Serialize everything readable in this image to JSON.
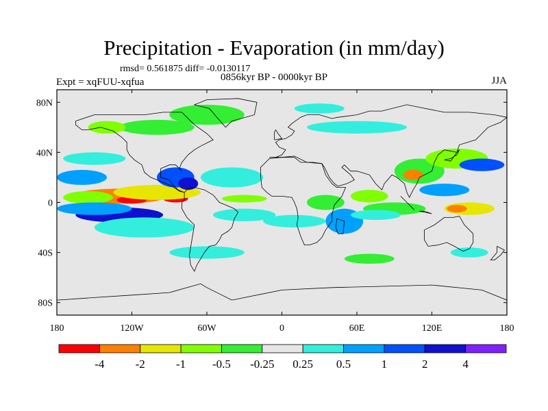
{
  "chart_data": {
    "type": "heatmap",
    "title": "Precipitation - Evaporation (in mm/day)",
    "stats_line": "rmsd= 0.561875 diff= -0.0130117",
    "period_line": "0856kyr BP - 0000kyr BP",
    "experiment": "Expt = xqFUU-xqfua",
    "season": "JJA",
    "x_ticks": [
      {
        "lon": -180,
        "label": "180"
      },
      {
        "lon": -120,
        "label": "120W"
      },
      {
        "lon": -60,
        "label": "60W"
      },
      {
        "lon": 0,
        "label": "0"
      },
      {
        "lon": 60,
        "label": "60E"
      },
      {
        "lon": 120,
        "label": "120E"
      },
      {
        "lon": 180,
        "label": "180"
      }
    ],
    "y_ticks": [
      {
        "lat": 80,
        "label": "80N"
      },
      {
        "lat": 40,
        "label": "40N"
      },
      {
        "lat": 0,
        "label": "0"
      },
      {
        "lat": -40,
        "label": "40S"
      },
      {
        "lat": -80,
        "label": "80S"
      }
    ],
    "lon_range": [
      -180,
      180
    ],
    "lat_range": [
      -90,
      90
    ],
    "colorbar": {
      "colors": [
        "#ff0000",
        "#ff8000",
        "#e6e600",
        "#80ff00",
        "#33ee33",
        "#e6e6e6",
        "#33eedd",
        "#00a0ff",
        "#0050ff",
        "#1010d0",
        "#8020ff"
      ],
      "labels": [
        "-4",
        "-2",
        "-1",
        "-0.5",
        "-0.25",
        "0.25",
        "0.5",
        "1",
        "2",
        "4"
      ]
    },
    "anomalies": [
      {
        "lon": -130,
        "lat": 5,
        "rx": 38,
        "ry": 6,
        "level": 1
      },
      {
        "lon": -120,
        "lat": 2,
        "rx": 12,
        "ry": 3,
        "level": 0
      },
      {
        "lon": -85,
        "lat": 3,
        "rx": 10,
        "ry": 3,
        "level": 0
      },
      {
        "lon": -155,
        "lat": 4,
        "rx": 20,
        "ry": 5,
        "level": 3
      },
      {
        "lon": -100,
        "lat": 8,
        "rx": 35,
        "ry": 6,
        "level": 2
      },
      {
        "lon": -30,
        "lat": 3,
        "rx": 18,
        "ry": 3,
        "level": 3
      },
      {
        "lon": -130,
        "lat": -10,
        "rx": 35,
        "ry": 6,
        "level": 9
      },
      {
        "lon": -110,
        "lat": -20,
        "rx": 40,
        "ry": 8,
        "level": 6
      },
      {
        "lon": -150,
        "lat": -5,
        "rx": 30,
        "ry": 5,
        "level": 7
      },
      {
        "lon": -160,
        "lat": 20,
        "rx": 20,
        "ry": 6,
        "level": 7
      },
      {
        "lon": -85,
        "lat": 20,
        "rx": 15,
        "ry": 8,
        "level": 8
      },
      {
        "lon": -75,
        "lat": 15,
        "rx": 8,
        "ry": 5,
        "level": 9
      },
      {
        "lon": -40,
        "lat": 20,
        "rx": 25,
        "ry": 8,
        "level": 6
      },
      {
        "lon": -30,
        "lat": -10,
        "rx": 25,
        "ry": 5,
        "level": 6
      },
      {
        "lon": 10,
        "lat": -15,
        "rx": 25,
        "ry": 5,
        "level": 6
      },
      {
        "lon": 50,
        "lat": -15,
        "rx": 15,
        "ry": 10,
        "level": 7
      },
      {
        "lon": 35,
        "lat": 0,
        "rx": 15,
        "ry": 6,
        "level": 4
      },
      {
        "lon": 70,
        "lat": 5,
        "rx": 15,
        "ry": 5,
        "level": 3
      },
      {
        "lon": 90,
        "lat": -5,
        "rx": 25,
        "ry": 5,
        "level": 4
      },
      {
        "lon": 75,
        "lat": -10,
        "rx": 20,
        "ry": 4,
        "level": 6
      },
      {
        "lon": 150,
        "lat": -5,
        "rx": 20,
        "ry": 5,
        "level": 2
      },
      {
        "lon": 140,
        "lat": -5,
        "rx": 8,
        "ry": 3,
        "level": 1
      },
      {
        "lon": 110,
        "lat": 25,
        "rx": 20,
        "ry": 10,
        "level": 4
      },
      {
        "lon": 105,
        "lat": 22,
        "rx": 8,
        "ry": 4,
        "level": 1
      },
      {
        "lon": 140,
        "lat": 35,
        "rx": 25,
        "ry": 8,
        "level": 3
      },
      {
        "lon": 160,
        "lat": 30,
        "rx": 18,
        "ry": 5,
        "level": 8
      },
      {
        "lon": 130,
        "lat": 10,
        "rx": 20,
        "ry": 5,
        "level": 7
      },
      {
        "lon": -150,
        "lat": 35,
        "rx": 25,
        "ry": 5,
        "level": 6
      },
      {
        "lon": -60,
        "lat": 70,
        "rx": 30,
        "ry": 8,
        "level": 4
      },
      {
        "lon": -100,
        "lat": 60,
        "rx": 30,
        "ry": 6,
        "level": 4
      },
      {
        "lon": 60,
        "lat": 60,
        "rx": 40,
        "ry": 5,
        "level": 6
      },
      {
        "lon": 30,
        "lat": 75,
        "rx": 20,
        "ry": 4,
        "level": 6
      },
      {
        "lon": -140,
        "lat": 60,
        "rx": 15,
        "ry": 5,
        "level": 3
      },
      {
        "lon": -60,
        "lat": -40,
        "rx": 30,
        "ry": 5,
        "level": 6
      },
      {
        "lon": 70,
        "lat": -45,
        "rx": 20,
        "ry": 4,
        "level": 4
      },
      {
        "lon": 150,
        "lat": -40,
        "rx": 15,
        "ry": 4,
        "level": 6
      }
    ],
    "coastlines": [
      [
        [
          -165,
          65
        ],
        [
          -150,
          70
        ],
        [
          -130,
          70
        ],
        [
          -110,
          70
        ],
        [
          -95,
          72
        ],
        [
          -80,
          72
        ],
        [
          -70,
          62
        ],
        [
          -60,
          55
        ],
        [
          -55,
          50
        ],
        [
          -65,
          45
        ],
        [
          -70,
          42
        ],
        [
          -75,
          38
        ],
        [
          -80,
          32
        ],
        [
          -82,
          27
        ],
        [
          -80,
          25
        ],
        [
          -85,
          30
        ],
        [
          -90,
          30
        ],
        [
          -97,
          27
        ],
        [
          -97,
          20
        ],
        [
          -90,
          18
        ],
        [
          -88,
          15
        ],
        [
          -83,
          10
        ],
        [
          -78,
          8
        ],
        [
          -82,
          9
        ],
        [
          -88,
          13
        ],
        [
          -95,
          16
        ],
        [
          -105,
          20
        ],
        [
          -110,
          24
        ],
        [
          -112,
          30
        ],
        [
          -118,
          34
        ],
        [
          -122,
          38
        ],
        [
          -124,
          42
        ],
        [
          -124,
          48
        ],
        [
          -128,
          52
        ],
        [
          -135,
          57
        ],
        [
          -145,
          60
        ],
        [
          -155,
          58
        ],
        [
          -160,
          58
        ],
        [
          -165,
          62
        ],
        [
          -165,
          65
        ]
      ],
      [
        [
          -78,
          8
        ],
        [
          -75,
          11
        ],
        [
          -70,
          12
        ],
        [
          -62,
          10
        ],
        [
          -55,
          6
        ],
        [
          -50,
          0
        ],
        [
          -45,
          -2
        ],
        [
          -38,
          -5
        ],
        [
          -35,
          -8
        ],
        [
          -38,
          -13
        ],
        [
          -40,
          -20
        ],
        [
          -43,
          -23
        ],
        [
          -48,
          -26
        ],
        [
          -50,
          -30
        ],
        [
          -53,
          -34
        ],
        [
          -58,
          -35
        ],
        [
          -62,
          -40
        ],
        [
          -65,
          -45
        ],
        [
          -68,
          -50
        ],
        [
          -70,
          -55
        ],
        [
          -73,
          -50
        ],
        [
          -74,
          -42
        ],
        [
          -72,
          -30
        ],
        [
          -70,
          -18
        ],
        [
          -76,
          -12
        ],
        [
          -80,
          -5
        ],
        [
          -80,
          0
        ],
        [
          -78,
          2
        ],
        [
          -78,
          8
        ]
      ],
      [
        [
          -10,
          36
        ],
        [
          -5,
          36
        ],
        [
          0,
          38
        ],
        [
          3,
          42
        ],
        [
          -2,
          44
        ],
        [
          -5,
          48
        ],
        [
          -2,
          50
        ],
        [
          3,
          51
        ],
        [
          8,
          54
        ],
        [
          10,
          57
        ],
        [
          5,
          60
        ],
        [
          8,
          63
        ],
        [
          15,
          68
        ],
        [
          20,
          70
        ],
        [
          30,
          70
        ],
        [
          40,
          67
        ],
        [
          45,
          68
        ],
        [
          60,
          70
        ],
        [
          70,
          73
        ],
        [
          80,
          73
        ],
        [
          100,
          78
        ],
        [
          110,
          76
        ],
        [
          130,
          72
        ],
        [
          150,
          72
        ],
        [
          170,
          70
        ],
        [
          180,
          68
        ],
        [
          175,
          64
        ],
        [
          165,
          60
        ],
        [
          160,
          55
        ],
        [
          155,
          50
        ],
        [
          142,
          46
        ],
        [
          140,
          40
        ],
        [
          130,
          42
        ],
        [
          125,
          38
        ],
        [
          122,
          32
        ],
        [
          120,
          25
        ],
        [
          110,
          20
        ],
        [
          108,
          15
        ],
        [
          105,
          10
        ],
        [
          102,
          4
        ],
        [
          100,
          8
        ],
        [
          98,
          15
        ],
        [
          92,
          20
        ],
        [
          88,
          22
        ],
        [
          82,
          15
        ],
        [
          80,
          10
        ],
        [
          75,
          15
        ],
        [
          70,
          22
        ],
        [
          60,
          25
        ],
        [
          55,
          25
        ],
        [
          50,
          30
        ],
        [
          48,
          28
        ],
        [
          55,
          22
        ],
        [
          58,
          18
        ],
        [
          52,
          15
        ],
        [
          45,
          13
        ],
        [
          42,
          15
        ],
        [
          38,
          20
        ],
        [
          34,
          28
        ],
        [
          32,
          31
        ],
        [
          25,
          32
        ],
        [
          15,
          32
        ],
        [
          10,
          36
        ],
        [
          0,
          36
        ],
        [
          -10,
          36
        ]
      ],
      [
        [
          -17,
          21
        ],
        [
          -16,
          12
        ],
        [
          -12,
          8
        ],
        [
          -8,
          5
        ],
        [
          0,
          5
        ],
        [
          8,
          4
        ],
        [
          10,
          0
        ],
        [
          12,
          -5
        ],
        [
          13,
          -12
        ],
        [
          12,
          -18
        ],
        [
          15,
          -27
        ],
        [
          18,
          -34
        ],
        [
          22,
          -34
        ],
        [
          28,
          -32
        ],
        [
          32,
          -28
        ],
        [
          35,
          -22
        ],
        [
          40,
          -15
        ],
        [
          40,
          -10
        ],
        [
          42,
          -2
        ],
        [
          48,
          5
        ],
        [
          51,
          12
        ],
        [
          44,
          12
        ],
        [
          40,
          15
        ],
        [
          35,
          22
        ],
        [
          32,
          31
        ],
        [
          20,
          32
        ],
        [
          10,
          37
        ],
        [
          0,
          36
        ],
        [
          -10,
          35
        ],
        [
          -17,
          28
        ],
        [
          -17,
          21
        ]
      ],
      [
        [
          44,
          -13
        ],
        [
          50,
          -15
        ],
        [
          49,
          -25
        ],
        [
          45,
          -25
        ],
        [
          43,
          -20
        ],
        [
          44,
          -13
        ]
      ],
      [
        [
          114,
          -22
        ],
        [
          122,
          -18
        ],
        [
          130,
          -12
        ],
        [
          137,
          -12
        ],
        [
          142,
          -11
        ],
        [
          146,
          -18
        ],
        [
          153,
          -25
        ],
        [
          153,
          -32
        ],
        [
          150,
          -37
        ],
        [
          145,
          -39
        ],
        [
          138,
          -35
        ],
        [
          132,
          -32
        ],
        [
          125,
          -34
        ],
        [
          117,
          -35
        ],
        [
          114,
          -30
        ],
        [
          114,
          -22
        ]
      ],
      [
        [
          -45,
          60
        ],
        [
          -40,
          65
        ],
        [
          -22,
          70
        ],
        [
          -20,
          80
        ],
        [
          -35,
          83
        ],
        [
          -60,
          82
        ],
        [
          -70,
          78
        ],
        [
          -58,
          75
        ],
        [
          -52,
          68
        ],
        [
          -45,
          60
        ]
      ],
      [
        [
          -180,
          -78
        ],
        [
          -150,
          -76
        ],
        [
          -120,
          -74
        ],
        [
          -90,
          -72
        ],
        [
          -65,
          -65
        ],
        [
          -60,
          -68
        ],
        [
          -40,
          -78
        ],
        [
          0,
          -70
        ],
        [
          40,
          -68
        ],
        [
          80,
          -67
        ],
        [
          120,
          -66
        ],
        [
          160,
          -70
        ],
        [
          180,
          -78
        ]
      ],
      [
        [
          172,
          -35
        ],
        [
          178,
          -38
        ],
        [
          175,
          -42
        ],
        [
          170,
          -46
        ],
        [
          167,
          -46
        ],
        [
          172,
          -40
        ],
        [
          172,
          -35
        ]
      ],
      [
        [
          95,
          5
        ],
        [
          105,
          -5
        ],
        [
          106,
          -6
        ],
        [
          100,
          0
        ],
        [
          95,
          5
        ]
      ],
      [
        [
          110,
          -7
        ],
        [
          115,
          -8
        ],
        [
          120,
          -9
        ],
        [
          114,
          -7
        ],
        [
          110,
          -7
        ]
      ],
      [
        [
          130,
          34
        ],
        [
          135,
          35
        ],
        [
          140,
          38
        ],
        [
          142,
          42
        ],
        [
          140,
          40
        ],
        [
          135,
          33
        ],
        [
          130,
          34
        ]
      ],
      [
        [
          -6,
          50
        ],
        [
          0,
          51
        ],
        [
          -3,
          55
        ],
        [
          -5,
          58
        ],
        [
          -6,
          56
        ],
        [
          -6,
          50
        ]
      ]
    ]
  }
}
